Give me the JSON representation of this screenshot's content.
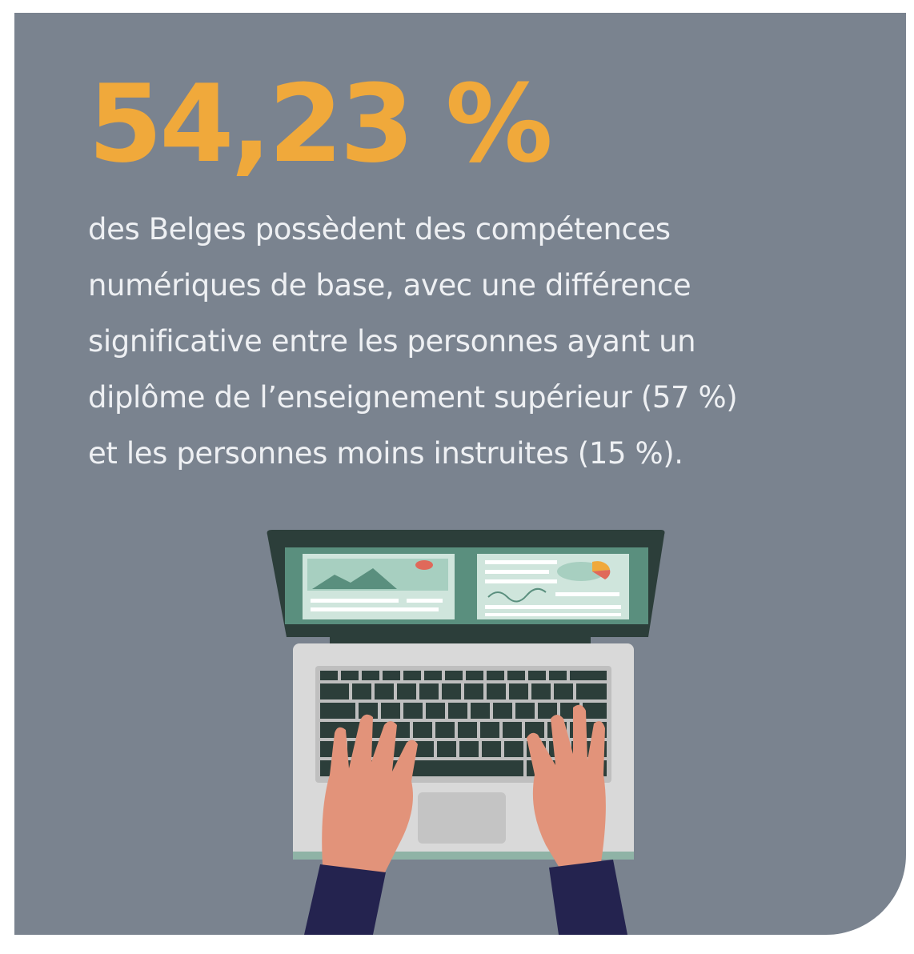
{
  "headline": "54,23 %",
  "description": {
    "line1": "des Belges possèdent des compétences",
    "line2": "numériques de base, avec une différence",
    "line3": "significative entre les personnes ayant un",
    "line4": "diplôme de l’enseignement supérieur (57 %)",
    "line5": "et les personnes moins instruites (15 %)."
  },
  "colors": {
    "background": "#7a838f",
    "accent": "#f0a93b",
    "text": "#eef0f3",
    "laptop_frame": "#2c3e3a",
    "screen": "#5a8f7e",
    "skin": "#e2937a",
    "sleeve": "#24234f"
  },
  "illustration": {
    "icon": "laptop-typing-icon"
  }
}
